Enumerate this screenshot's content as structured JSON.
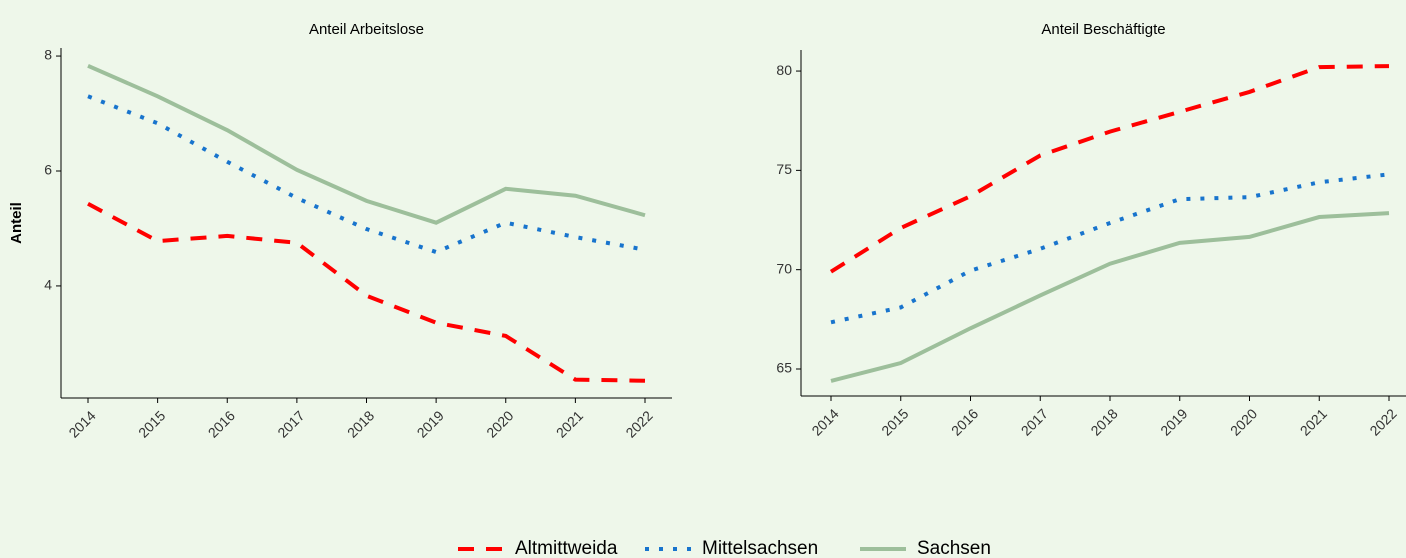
{
  "chart_data": [
    {
      "type": "line",
      "title": "Anteil Arbeitslose",
      "y_label": "Anteil",
      "categories": [
        "2014",
        "2015",
        "2016",
        "2017",
        "2018",
        "2019",
        "2020",
        "2021",
        "2022"
      ],
      "ylim": [
        2.05,
        8.14
      ],
      "yticks": [
        4,
        6,
        8
      ],
      "series": [
        {
          "name": "Altmittweida",
          "color": "#ff0000",
          "style": "dashed",
          "values": [
            5.43,
            4.78,
            4.87,
            4.75,
            3.83,
            3.36,
            3.13,
            2.37,
            2.35
          ]
        },
        {
          "name": "Mittelsachsen",
          "color": "#1874cd",
          "style": "dotted",
          "values": [
            7.3,
            6.83,
            6.16,
            5.53,
            4.99,
            4.59,
            5.1,
            4.85,
            4.63
          ]
        },
        {
          "name": "Sachsen",
          "color": "#9dbf9b",
          "style": "solid",
          "values": [
            7.83,
            7.3,
            6.71,
            6.02,
            5.48,
            5.1,
            5.69,
            5.57,
            5.23
          ]
        }
      ]
    },
    {
      "type": "line",
      "title": "Anteil Beschäftigte",
      "categories": [
        "2014",
        "2015",
        "2016",
        "2017",
        "2018",
        "2019",
        "2020",
        "2021",
        "2022"
      ],
      "ylim": [
        63.64,
        81.06
      ],
      "yticks": [
        65,
        70,
        75,
        80
      ],
      "series": [
        {
          "name": "Altmittweida",
          "color": "#ff0000",
          "style": "dashed",
          "values": [
            69.9,
            72.1,
            73.7,
            75.75,
            76.95,
            77.95,
            78.95,
            80.2,
            80.25
          ]
        },
        {
          "name": "Mittelsachsen",
          "color": "#1874cd",
          "style": "dotted",
          "values": [
            67.35,
            68.1,
            69.95,
            71.05,
            72.35,
            73.55,
            73.65,
            74.4,
            74.8
          ]
        },
        {
          "name": "Sachsen",
          "color": "#9dbf9b",
          "style": "solid",
          "values": [
            64.4,
            65.3,
            67.05,
            68.7,
            70.3,
            71.35,
            71.65,
            72.65,
            72.85
          ]
        }
      ]
    }
  ]
}
